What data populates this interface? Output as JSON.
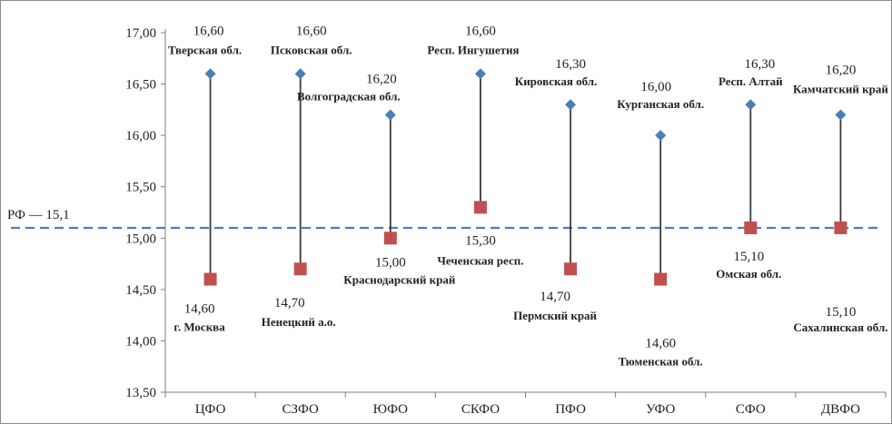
{
  "chart_data": {
    "type": "scatter",
    "categories": [
      "ЦФО",
      "СЗФО",
      "ЮФО",
      "СКФО",
      "ПФО",
      "УФО",
      "СФО",
      "ДВФО"
    ],
    "series": [
      {
        "values": [
          16.6,
          16.6,
          16.2,
          16.6,
          16.3,
          16.0,
          16.3,
          16.2
        ],
        "value_labels": [
          "16,60",
          "16,60",
          "16,20",
          "16,60",
          "16,30",
          "16,00",
          "16,30",
          "16,20"
        ],
        "region_labels": [
          "Тверская обл.",
          "Псковская обл.",
          "Волгоградская обл.",
          "Респ. Ингушетия",
          "Кировская обл.",
          "Курганская обл.",
          "Респ. Алтай",
          "Камчатский край"
        ],
        "marker": "diamond",
        "color": "#4a7ebb"
      },
      {
        "values": [
          14.6,
          14.7,
          15.0,
          15.3,
          14.7,
          14.6,
          15.1,
          15.1
        ],
        "value_labels": [
          "14,60",
          "14,70",
          "15,00",
          "15,30",
          "14,70",
          "14,60",
          "15,10",
          "15,10"
        ],
        "region_labels": [
          "г. Москва",
          "Ненецкий а.о.",
          "Краснодарский край",
          "Чеченская респ.",
          "Пермский край",
          "Тюменская обл.",
          "Омская обл.",
          "Сахалинская обл."
        ],
        "marker": "square",
        "color": "#c0504d"
      }
    ],
    "reference_line": {
      "value": 15.1,
      "label": "РФ — 15,1",
      "color": "#4a7ebb",
      "style": "dashed"
    },
    "ylim": [
      13.5,
      17.0
    ],
    "yticks": [
      "13,50",
      "14,00",
      "14,50",
      "15,00",
      "15,50",
      "16,00",
      "16,50",
      "17,00"
    ],
    "xlabel": "",
    "ylabel": "",
    "grid": false,
    "connectors": true
  }
}
